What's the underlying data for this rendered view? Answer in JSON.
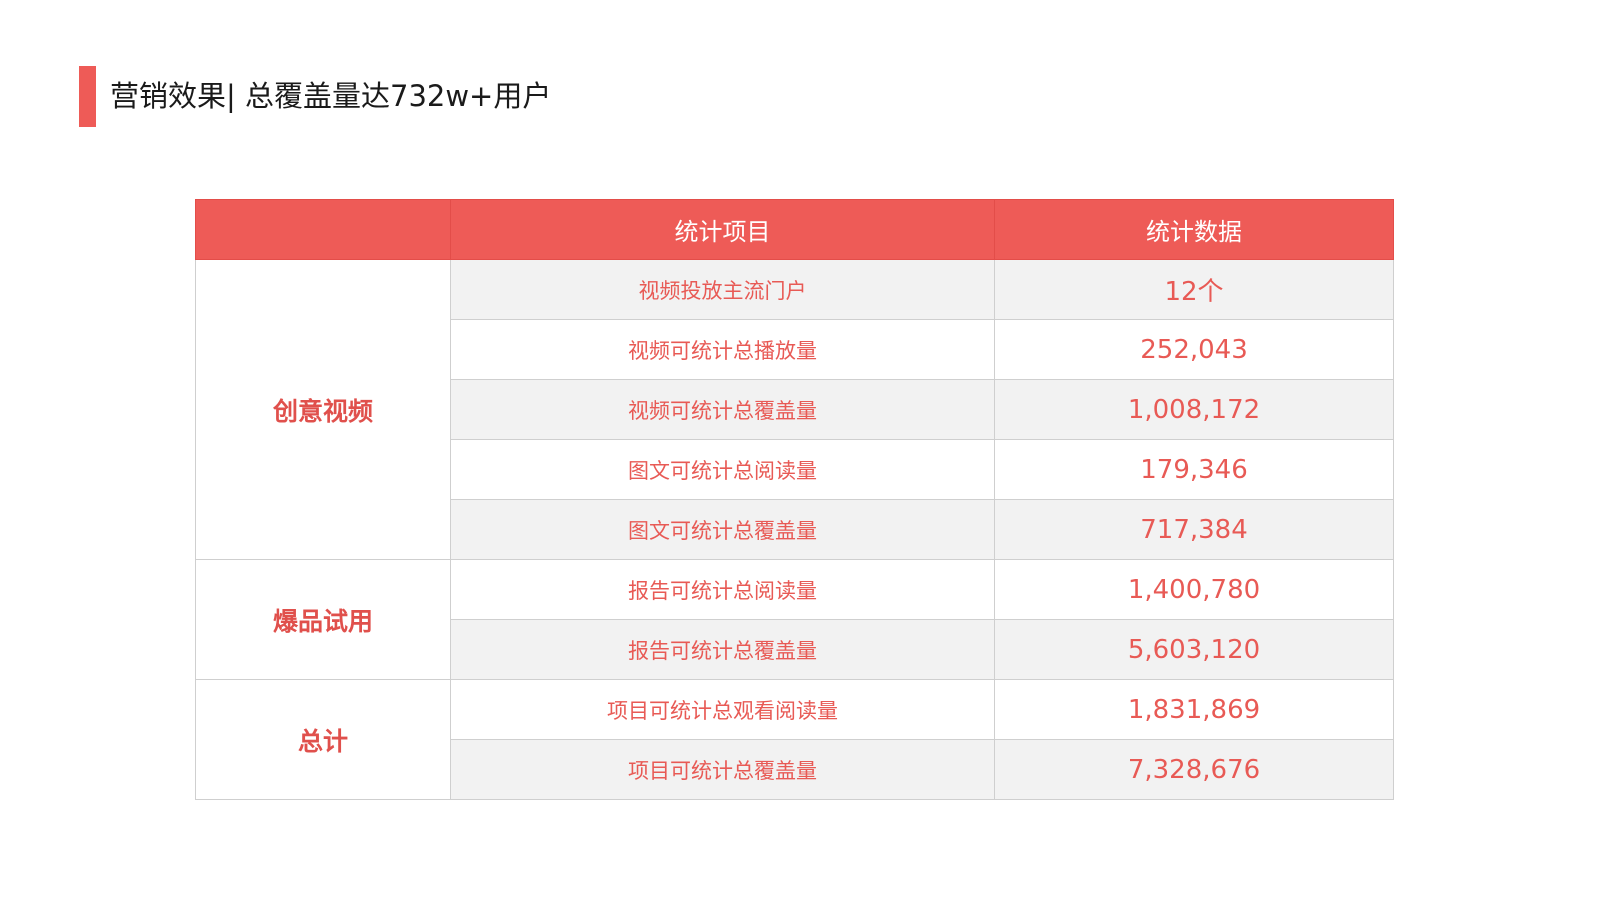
{
  "title": "营销效果| 总覆盖量达732w+用户",
  "colors": {
    "accent": "#ee5b57",
    "text_red": "#e85a55",
    "stripe": "#f2f2f2"
  },
  "table": {
    "headers": [
      "",
      "统计项目",
      "统计数据"
    ],
    "groups": [
      {
        "label": "创意视频",
        "rows": [
          {
            "item": "视频投放主流门户",
            "value": "12个"
          },
          {
            "item": "视频可统计总播放量",
            "value": "252,043"
          },
          {
            "item": "视频可统计总覆盖量",
            "value": "1,008,172"
          },
          {
            "item": "图文可统计总阅读量",
            "value": "179,346"
          },
          {
            "item": "图文可统计总覆盖量",
            "value": "717,384"
          }
        ]
      },
      {
        "label": "爆品试用",
        "rows": [
          {
            "item": "报告可统计总阅读量",
            "value": "1,400,780"
          },
          {
            "item": "报告可统计总覆盖量",
            "value": "5,603,120"
          }
        ]
      },
      {
        "label": "总计",
        "rows": [
          {
            "item": "项目可统计总观看阅读量",
            "value": "1,831,869"
          },
          {
            "item": "项目可统计总覆盖量",
            "value": "7,328,676"
          }
        ]
      }
    ]
  }
}
